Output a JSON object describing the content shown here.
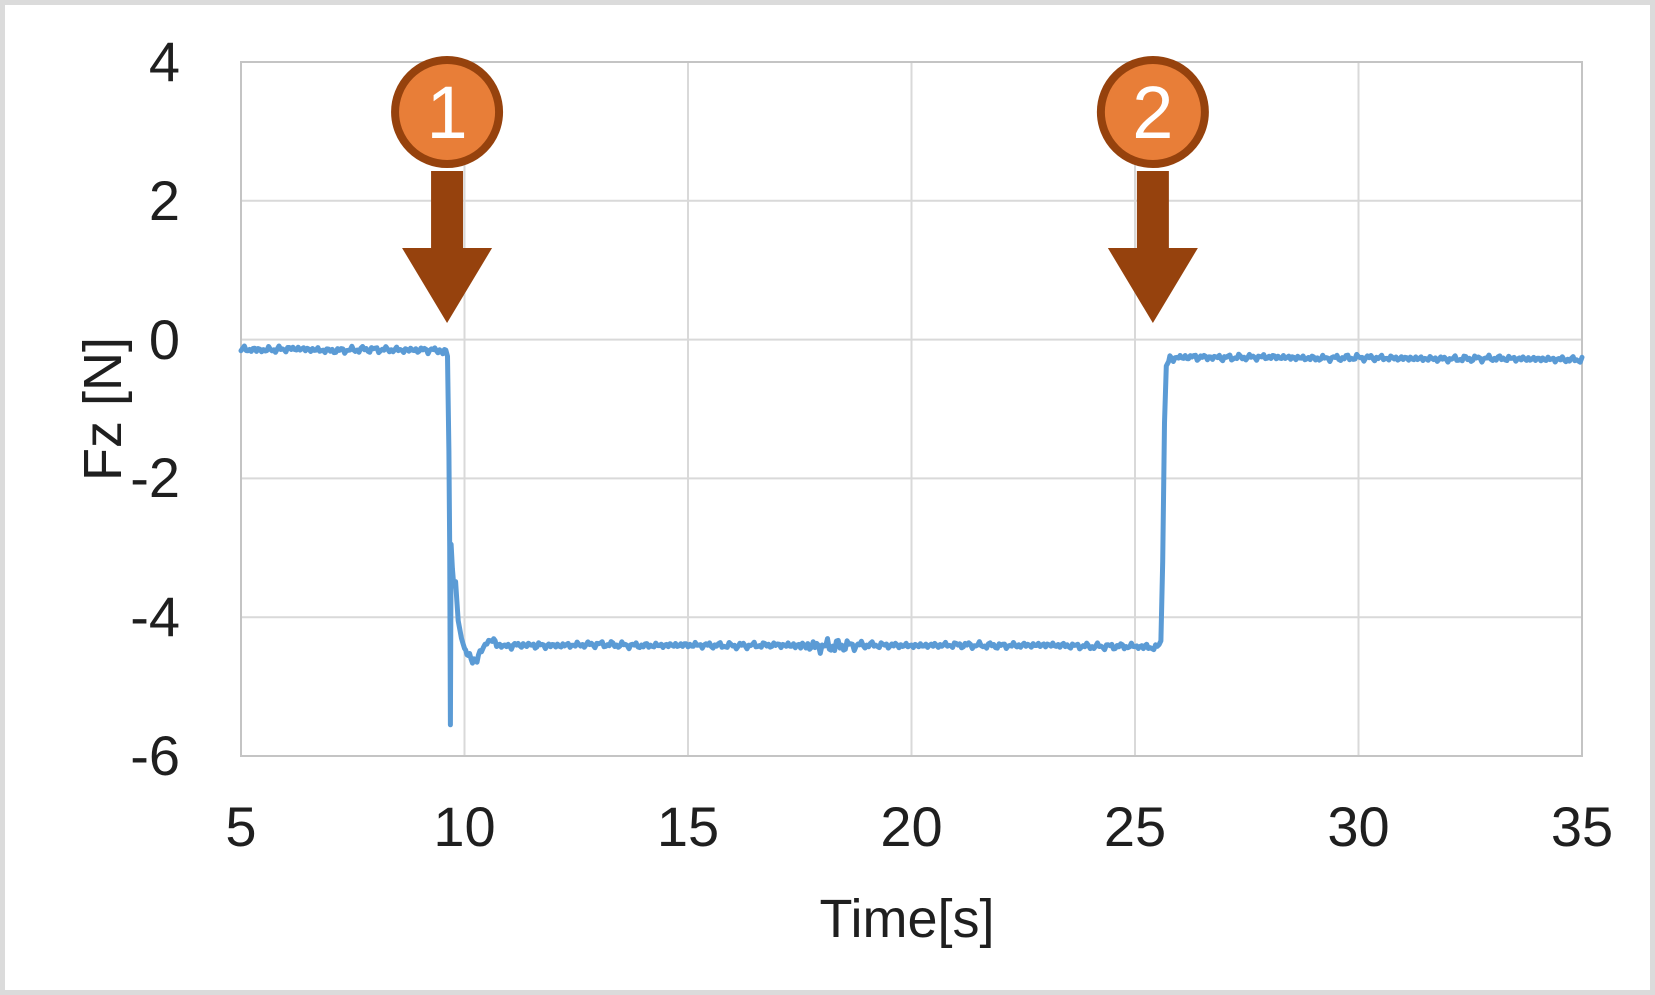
{
  "frame": {
    "background_color": "#FFFFFF",
    "border_color": "#DBDBDB"
  },
  "chart_data": {
    "type": "line",
    "title": "",
    "xlabel": "Time[s]",
    "ylabel": "Fz [N]",
    "xlim": [
      5,
      35
    ],
    "ylim": [
      -6,
      4
    ],
    "x_ticks": [
      5,
      10,
      15,
      20,
      25,
      30,
      35
    ],
    "y_ticks": [
      4,
      2,
      0,
      -2,
      -4,
      -6
    ],
    "grid": true,
    "legend": "none",
    "colors": {
      "line": "#5B9BD5",
      "gridline": "#D9D9D9",
      "plot_border": "#C4C4C4",
      "tick_text": "#1F1F1F",
      "marker_fill": "#E87E38",
      "marker_stroke": "#96420D",
      "marker_text": "#FFFFFF"
    },
    "noise_amplitude": 0.045,
    "noise_burst": {
      "center_t": 18.1,
      "extra": 1.6,
      "width": 0.3
    },
    "series": [
      {
        "name": "Fz",
        "points": [
          [
            5.0,
            -0.14
          ],
          [
            5.5,
            -0.15
          ],
          [
            6.2,
            -0.13
          ],
          [
            7.0,
            -0.16
          ],
          [
            7.8,
            -0.14
          ],
          [
            8.6,
            -0.15
          ],
          [
            9.3,
            -0.15
          ],
          [
            9.55,
            -0.17
          ],
          [
            9.62,
            -0.22
          ],
          [
            9.65,
            -1.6
          ],
          [
            9.67,
            -3.0
          ],
          [
            9.685,
            -5.55
          ],
          [
            9.7,
            -2.95
          ],
          [
            9.73,
            -3.3
          ],
          [
            9.76,
            -3.55
          ],
          [
            9.8,
            -3.5
          ],
          [
            9.86,
            -4.05
          ],
          [
            9.93,
            -4.3
          ],
          [
            10.0,
            -4.45
          ],
          [
            10.08,
            -4.55
          ],
          [
            10.18,
            -4.63
          ],
          [
            10.28,
            -4.6
          ],
          [
            10.38,
            -4.48
          ],
          [
            10.5,
            -4.36
          ],
          [
            10.62,
            -4.33
          ],
          [
            10.75,
            -4.4
          ],
          [
            10.9,
            -4.42
          ],
          [
            11.2,
            -4.4
          ],
          [
            12,
            -4.41
          ],
          [
            13,
            -4.39
          ],
          [
            14,
            -4.41
          ],
          [
            15,
            -4.4
          ],
          [
            16,
            -4.41
          ],
          [
            17,
            -4.4
          ],
          [
            18,
            -4.42
          ],
          [
            19,
            -4.4
          ],
          [
            20,
            -4.41
          ],
          [
            21,
            -4.4
          ],
          [
            22,
            -4.41
          ],
          [
            23,
            -4.4
          ],
          [
            24,
            -4.42
          ],
          [
            25,
            -4.42
          ],
          [
            25.3,
            -4.43
          ],
          [
            25.5,
            -4.44
          ],
          [
            25.58,
            -4.35
          ],
          [
            25.62,
            -3.2
          ],
          [
            25.66,
            -1.2
          ],
          [
            25.7,
            -0.38
          ],
          [
            25.78,
            -0.27
          ],
          [
            26.2,
            -0.25
          ],
          [
            27,
            -0.26
          ],
          [
            28,
            -0.25
          ],
          [
            29,
            -0.27
          ],
          [
            30,
            -0.26
          ],
          [
            31,
            -0.27
          ],
          [
            32,
            -0.28
          ],
          [
            33,
            -0.27
          ],
          [
            34,
            -0.28
          ],
          [
            35,
            -0.29
          ]
        ]
      }
    ],
    "annotations": [
      {
        "label": "1",
        "t": 9.61
      },
      {
        "label": "2",
        "t": 25.4
      }
    ]
  }
}
